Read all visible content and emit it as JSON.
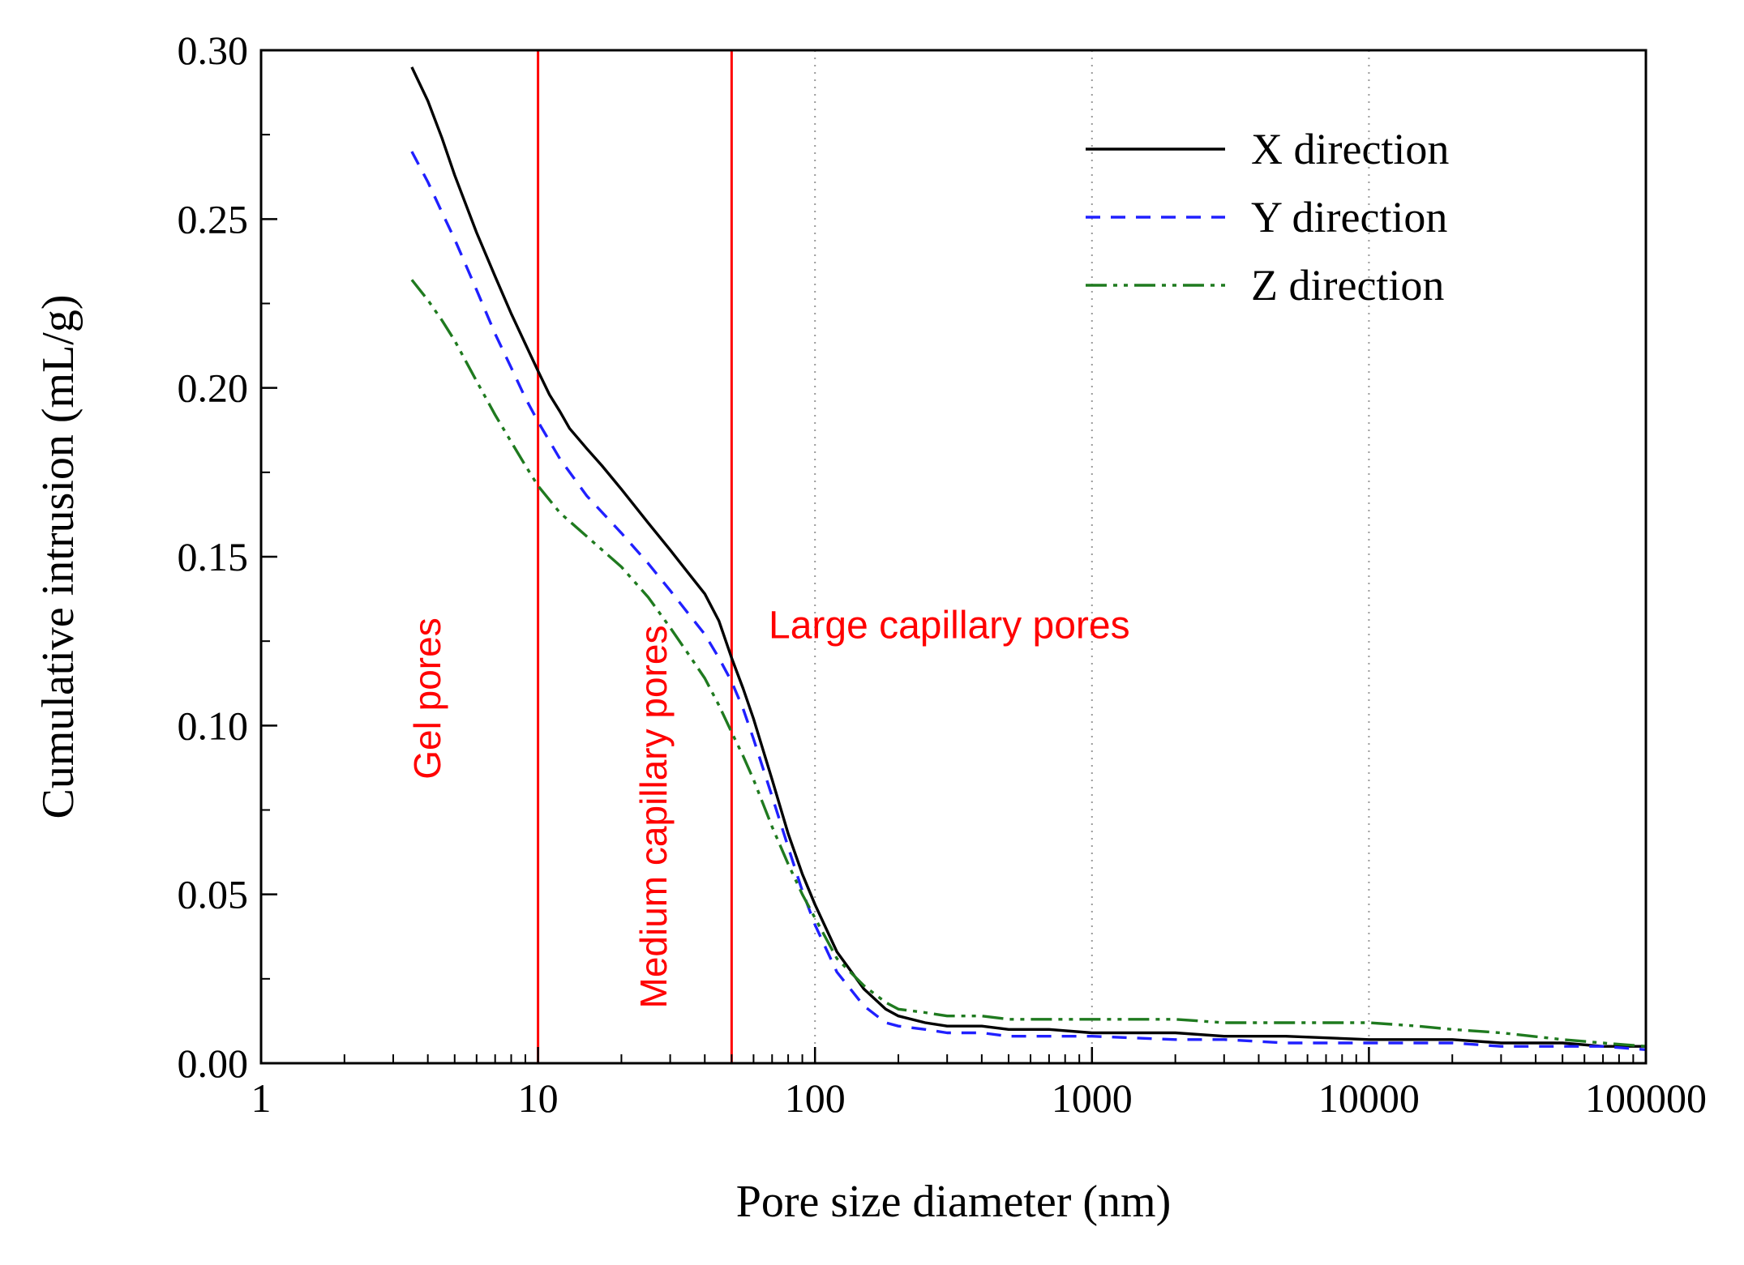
{
  "colors": {
    "frame": "#000000",
    "grid": "#9a9a9a",
    "annotation": "#ff0000",
    "x_series": "#000000",
    "y_series": "#2020ff",
    "z_series": "#1f7a1f",
    "reference_line": "#ff0000"
  },
  "annotations": [
    {
      "id": "gel-pores",
      "text": "Gel pores",
      "color": "#ff0000",
      "orientation": "vertical"
    },
    {
      "id": "medium-capillary-pores",
      "text": "Medium capillary pores",
      "color": "#ff0000",
      "orientation": "vertical"
    },
    {
      "id": "large-capillary-pores",
      "text": "Large capillary pores",
      "color": "#ff0000",
      "orientation": "horizontal"
    }
  ],
  "chart_data": {
    "type": "line",
    "title": "",
    "xlabel": "Pore size diameter (nm)",
    "ylabel": "Cumulative intrusion (mL/g)",
    "x_scale": "log",
    "xlim": [
      1,
      100000
    ],
    "ylim": [
      0,
      0.3
    ],
    "grid": "vertical-dotted",
    "gridlines_x": [
      100,
      1000,
      10000
    ],
    "legend_position": "top-right-inside",
    "x_ticks": [
      {
        "v": 1,
        "label": "1"
      },
      {
        "v": 10,
        "label": "10"
      },
      {
        "v": 100,
        "label": "100"
      },
      {
        "v": 1000,
        "label": "1000"
      },
      {
        "v": 10000,
        "label": "10000"
      },
      {
        "v": 100000,
        "label": "100000"
      }
    ],
    "y_ticks": [
      {
        "v": 0.0,
        "label": "0.00"
      },
      {
        "v": 0.05,
        "label": "0.05"
      },
      {
        "v": 0.1,
        "label": "0.10"
      },
      {
        "v": 0.15,
        "label": "0.15"
      },
      {
        "v": 0.2,
        "label": "0.20"
      },
      {
        "v": 0.25,
        "label": "0.25"
      },
      {
        "v": 0.3,
        "label": "0.30"
      }
    ],
    "reference_lines": [
      {
        "x": 10,
        "color": "#ff0000"
      },
      {
        "x": 50,
        "color": "#ff0000"
      }
    ],
    "series": [
      {
        "name": "X direction",
        "color": "#000000",
        "line_style": "solid",
        "dash": "",
        "points": [
          [
            3.5,
            0.295
          ],
          [
            4,
            0.285
          ],
          [
            4.5,
            0.274
          ],
          [
            5,
            0.263
          ],
          [
            6,
            0.246
          ],
          [
            7,
            0.233
          ],
          [
            8,
            0.222
          ],
          [
            9,
            0.213
          ],
          [
            10,
            0.205
          ],
          [
            11,
            0.198
          ],
          [
            12,
            0.193
          ],
          [
            13,
            0.188
          ],
          [
            15,
            0.182
          ],
          [
            17,
            0.177
          ],
          [
            20,
            0.17
          ],
          [
            25,
            0.16
          ],
          [
            30,
            0.152
          ],
          [
            35,
            0.145
          ],
          [
            40,
            0.139
          ],
          [
            45,
            0.131
          ],
          [
            50,
            0.12
          ],
          [
            55,
            0.111
          ],
          [
            60,
            0.102
          ],
          [
            70,
            0.084
          ],
          [
            80,
            0.068
          ],
          [
            90,
            0.056
          ],
          [
            100,
            0.047
          ],
          [
            120,
            0.033
          ],
          [
            150,
            0.022
          ],
          [
            180,
            0.016
          ],
          [
            200,
            0.014
          ],
          [
            250,
            0.012
          ],
          [
            300,
            0.011
          ],
          [
            400,
            0.011
          ],
          [
            500,
            0.01
          ],
          [
            700,
            0.01
          ],
          [
            1000,
            0.009
          ],
          [
            2000,
            0.009
          ],
          [
            3000,
            0.008
          ],
          [
            5000,
            0.008
          ],
          [
            10000,
            0.007
          ],
          [
            20000,
            0.007
          ],
          [
            30000,
            0.006
          ],
          [
            50000,
            0.006
          ],
          [
            70000,
            0.005
          ],
          [
            100000,
            0.005
          ]
        ]
      },
      {
        "name": "Y direction",
        "color": "#2020ff",
        "line_style": "dashed",
        "dash": "18 13",
        "points": [
          [
            3.5,
            0.27
          ],
          [
            4,
            0.261
          ],
          [
            4.5,
            0.252
          ],
          [
            5,
            0.244
          ],
          [
            6,
            0.229
          ],
          [
            7,
            0.216
          ],
          [
            8,
            0.206
          ],
          [
            9,
            0.197
          ],
          [
            10,
            0.19
          ],
          [
            12,
            0.179
          ],
          [
            15,
            0.168
          ],
          [
            20,
            0.157
          ],
          [
            25,
            0.148
          ],
          [
            30,
            0.14
          ],
          [
            35,
            0.133
          ],
          [
            40,
            0.127
          ],
          [
            45,
            0.12
          ],
          [
            50,
            0.113
          ],
          [
            55,
            0.105
          ],
          [
            60,
            0.096
          ],
          [
            70,
            0.079
          ],
          [
            80,
            0.064
          ],
          [
            90,
            0.051
          ],
          [
            100,
            0.041
          ],
          [
            120,
            0.027
          ],
          [
            150,
            0.017
          ],
          [
            180,
            0.012
          ],
          [
            200,
            0.011
          ],
          [
            250,
            0.01
          ],
          [
            300,
            0.009
          ],
          [
            400,
            0.009
          ],
          [
            500,
            0.008
          ],
          [
            700,
            0.008
          ],
          [
            1000,
            0.008
          ],
          [
            2000,
            0.007
          ],
          [
            3000,
            0.007
          ],
          [
            5000,
            0.006
          ],
          [
            10000,
            0.006
          ],
          [
            20000,
            0.006
          ],
          [
            30000,
            0.005
          ],
          [
            50000,
            0.005
          ],
          [
            70000,
            0.005
          ],
          [
            100000,
            0.004
          ]
        ]
      },
      {
        "name": "Z direction",
        "color": "#1f7a1f",
        "line_style": "dash-dot-dot",
        "dash": "26 8 5 8 5 8",
        "points": [
          [
            3.5,
            0.232
          ],
          [
            4,
            0.226
          ],
          [
            4.5,
            0.22
          ],
          [
            5,
            0.214
          ],
          [
            6,
            0.202
          ],
          [
            7,
            0.192
          ],
          [
            8,
            0.184
          ],
          [
            9,
            0.177
          ],
          [
            10,
            0.171
          ],
          [
            12,
            0.163
          ],
          [
            15,
            0.156
          ],
          [
            20,
            0.147
          ],
          [
            25,
            0.138
          ],
          [
            30,
            0.129
          ],
          [
            35,
            0.121
          ],
          [
            40,
            0.114
          ],
          [
            45,
            0.106
          ],
          [
            50,
            0.098
          ],
          [
            55,
            0.091
          ],
          [
            60,
            0.084
          ],
          [
            70,
            0.07
          ],
          [
            80,
            0.059
          ],
          [
            90,
            0.05
          ],
          [
            100,
            0.043
          ],
          [
            120,
            0.031
          ],
          [
            150,
            0.023
          ],
          [
            180,
            0.018
          ],
          [
            200,
            0.016
          ],
          [
            250,
            0.015
          ],
          [
            300,
            0.014
          ],
          [
            400,
            0.014
          ],
          [
            500,
            0.013
          ],
          [
            700,
            0.013
          ],
          [
            1000,
            0.013
          ],
          [
            2000,
            0.013
          ],
          [
            3000,
            0.012
          ],
          [
            5000,
            0.012
          ],
          [
            10000,
            0.012
          ],
          [
            15000,
            0.011
          ],
          [
            20000,
            0.01
          ],
          [
            30000,
            0.009
          ],
          [
            50000,
            0.007
          ],
          [
            70000,
            0.006
          ],
          [
            100000,
            0.005
          ]
        ]
      }
    ]
  }
}
